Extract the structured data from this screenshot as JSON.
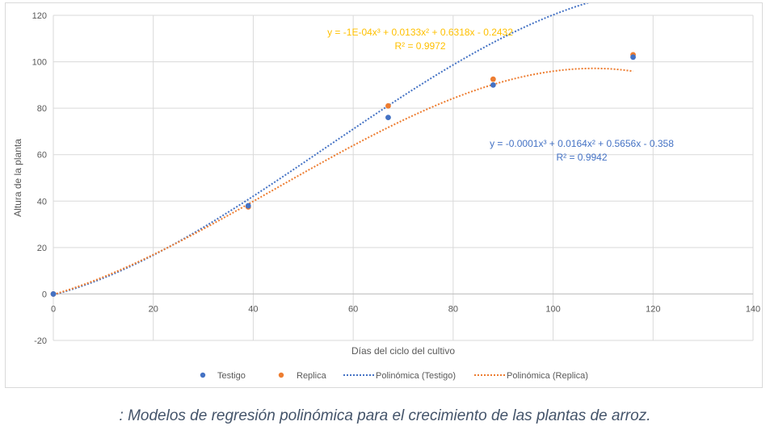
{
  "chart_data": {
    "type": "scatter",
    "xlabel": "Días del ciclo del cultivo",
    "ylabel": "Altura de la planta",
    "xlim": [
      0,
      140
    ],
    "ylim": [
      -20,
      120
    ],
    "x_ticks": [
      0,
      20,
      40,
      60,
      80,
      100,
      120,
      140
    ],
    "y_ticks": [
      -20,
      0,
      20,
      40,
      60,
      80,
      100,
      120
    ],
    "grid": true,
    "legend_position": "bottom",
    "series": [
      {
        "name": "Testigo",
        "color": "#4472c4",
        "x": [
          0,
          39,
          67,
          88,
          116
        ],
        "y": [
          0,
          38,
          76,
          90,
          102
        ]
      },
      {
        "name": "Replica",
        "color": "#ed7d31",
        "x": [
          0,
          39,
          67,
          88,
          116
        ],
        "y": [
          0,
          37.5,
          81,
          92.5,
          103
        ]
      }
    ],
    "trendlines": [
      {
        "name": "Polinómica (Testigo)",
        "color": "#4472c4",
        "coefficients": [
          -0.0001,
          0.0164,
          0.5656,
          -0.358
        ],
        "x_range": [
          0,
          116
        ]
      },
      {
        "name": "Polinómica (Replica)",
        "color": "#ed7d31",
        "coefficients": [
          -0.0001,
          0.0133,
          0.6318,
          -0.2432
        ],
        "x_range": [
          0,
          116
        ]
      }
    ],
    "annotations": [
      {
        "id": "replica",
        "equation": "y = -1E-04x³ + 0.0133x² + 0.6318x - 0.2432",
        "r2": "R² = 0.9972",
        "color": "#ffc000"
      },
      {
        "id": "testigo",
        "equation": "y = -0.0001x³ + 0.0164x² + 0.5656x - 0.358",
        "r2": "R² = 0.9942",
        "color": "#4472c4"
      }
    ]
  },
  "caption": ": Modelos de regresión polinómica para el crecimiento de las plantas de arroz.",
  "colors": {
    "grid": "#d9d9d9",
    "axis_text": "#595959"
  }
}
